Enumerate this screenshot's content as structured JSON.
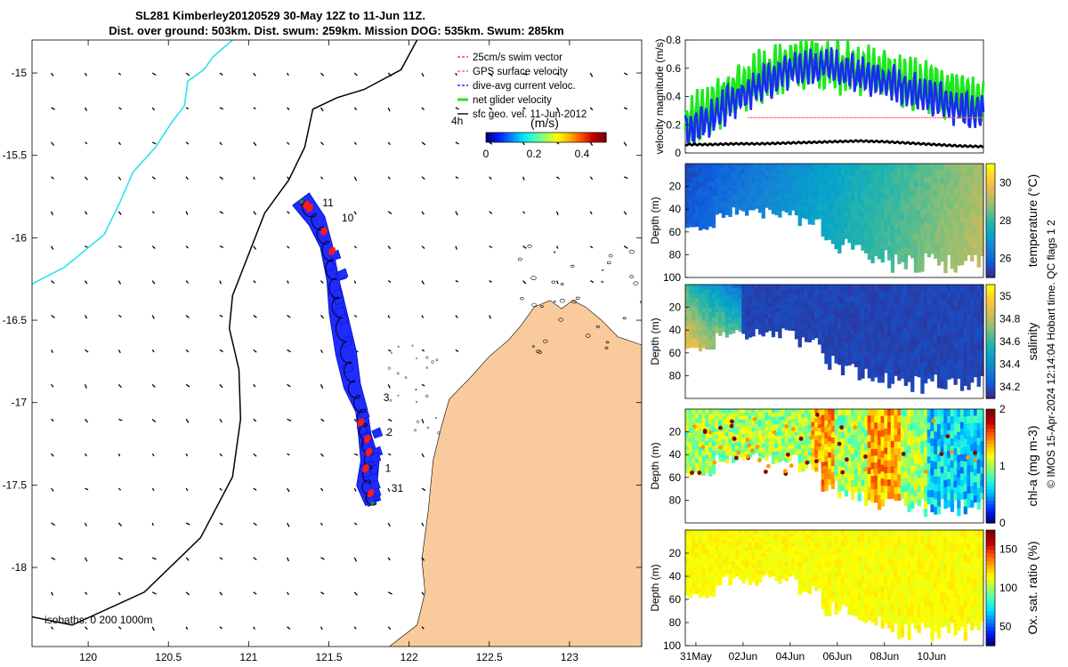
{
  "title": {
    "line1": "SL281 Kimberley20120529 30-May 12Z to 11-Jun 11Z.",
    "line2": "Dist. over ground: 503km. Dist. swum: 259km. Mission DOG: 535km. Swum: 285km"
  },
  "credit": "© IMOS 15-Apr-2024 12:14:04 Hobart time. QC flags 1  2",
  "colors": {
    "land": "#f9cb9c",
    "track_blue": "#1f2bff",
    "track_red": "#ff1a1a",
    "vel_green": "#1ee81e",
    "vel_blue": "#1a2cf0",
    "vel_red": "#ff6060",
    "coast": "#000000",
    "isobath_cyan": "#2de1ee"
  },
  "chart_data": [
    {
      "type": "map",
      "name": "glider track map",
      "xticks": [
        "120",
        "120.5",
        "121",
        "121.5",
        "122",
        "122.5",
        "123"
      ],
      "xtick_values": [
        120,
        120.5,
        121,
        121.5,
        122,
        122.5,
        123
      ],
      "yticks": [
        "-15",
        "-15.5",
        "-16",
        "-16.5",
        "-17",
        "-17.5",
        "-18"
      ],
      "ytick_values": [
        -15,
        -15.5,
        -16,
        -16.5,
        -17,
        -17.5,
        -18
      ],
      "xlim": [
        119.65,
        123.45
      ],
      "ylim": [
        -18.48,
        -14.8
      ],
      "day_labels": [
        {
          "text": "11",
          "lon": 121.46,
          "lat": -15.81
        },
        {
          "text": "10",
          "lon": 121.58,
          "lat": -15.9
        },
        {
          "text": "3",
          "lon": 121.84,
          "lat": -16.99
        },
        {
          "text": "2",
          "lon": 121.86,
          "lat": -17.2
        },
        {
          "text": "1",
          "lon": 121.85,
          "lat": -17.42
        },
        {
          "text": "31",
          "lon": 121.89,
          "lat": -17.54
        }
      ],
      "track": [
        [
          121.77,
          -17.61
        ],
        [
          121.73,
          -17.5
        ],
        [
          121.75,
          -17.35
        ],
        [
          121.72,
          -17.2
        ],
        [
          121.7,
          -17.05
        ],
        [
          121.64,
          -16.9
        ],
        [
          121.6,
          -16.7
        ],
        [
          121.55,
          -16.45
        ],
        [
          121.52,
          -16.25
        ],
        [
          121.48,
          -16.05
        ],
        [
          121.42,
          -15.9
        ],
        [
          121.32,
          -15.77
        ]
      ],
      "legend": [
        "25cm/s swim vector",
        "GPS surface velocity",
        "dive-avg current veloc.",
        "net glider velocity",
        "sfc geo. vel. 11-Jun-2012"
      ],
      "legend_time": "4h",
      "colorbar": {
        "label": "(m/s)",
        "ticks": [
          "0",
          "0.2",
          "0.4"
        ],
        "tick_values": [
          0,
          0.2,
          0.4
        ],
        "range": [
          0,
          0.5
        ]
      },
      "isobaths_label": "isobaths: 0   200  1000m"
    },
    {
      "type": "line",
      "name": "velocity magnitude",
      "ylabel": "velocity magnitude (m/s)",
      "ylim": [
        0,
        0.8
      ],
      "yticks": [
        "0",
        "0.2",
        "0.4",
        "0.6",
        "0.8"
      ],
      "ytick_values": [
        0,
        0.2,
        0.4,
        0.6,
        0.8
      ],
      "xlim_days": [
        0,
        12.5
      ],
      "series": [
        {
          "name": "net glider velocity",
          "color": "#1ee81e",
          "base": [
            0.2,
            0.32,
            0.45,
            0.55,
            0.62,
            0.66,
            0.62,
            0.58,
            0.55,
            0.5,
            0.45,
            0.4,
            0.35
          ],
          "amp": 0.14
        },
        {
          "name": "dive-avg current veloc.",
          "color": "#1a2cf0",
          "base": [
            0.15,
            0.25,
            0.38,
            0.48,
            0.58,
            0.62,
            0.6,
            0.55,
            0.5,
            0.45,
            0.38,
            0.32,
            0.28
          ],
          "amp": 0.1
        },
        {
          "name": "25cm/s swim vector",
          "color": "#ff6060",
          "base": [
            0.25,
            0.25,
            0.25,
            0.25,
            0.25,
            0.25,
            0.25,
            0.25,
            0.25,
            0.25,
            0.25,
            0.25,
            0.25
          ],
          "amp": 0.0,
          "from_day": 2.2
        },
        {
          "name": "sfc geo. vel.",
          "color": "#000000",
          "base": [
            0.06,
            0.06,
            0.065,
            0.065,
            0.07,
            0.075,
            0.08,
            0.085,
            0.08,
            0.07,
            0.06,
            0.05,
            0.045
          ],
          "amp": 0.005
        }
      ]
    },
    {
      "type": "heatmap",
      "name": "temperature",
      "ylabel": "Depth (m)",
      "clabel": "temperature (°C)",
      "yticks": [
        "20",
        "40",
        "60",
        "80",
        "100"
      ],
      "ytick_values": [
        20,
        40,
        60,
        80,
        100
      ],
      "ylim": [
        0,
        100
      ],
      "cticks": [
        "26",
        "28",
        "30"
      ],
      "ctick_values": [
        26,
        28,
        30
      ],
      "crange": [
        25,
        31
      ],
      "cmap": "parula"
    },
    {
      "type": "heatmap",
      "name": "salinity",
      "ylabel": "Depth (m)",
      "clabel": "salinity",
      "yticks": [
        "20",
        "40",
        "60",
        "80"
      ],
      "ytick_values": [
        20,
        40,
        60,
        80
      ],
      "ylim": [
        0,
        100
      ],
      "cticks": [
        "34.2",
        "34.4",
        "34.6",
        "34.8",
        "35"
      ],
      "ctick_values": [
        34.2,
        34.4,
        34.6,
        34.8,
        35
      ],
      "crange": [
        34.1,
        35.1
      ],
      "cmap": "parula"
    },
    {
      "type": "heatmap",
      "name": "chl-a",
      "ylabel": "Depth (m)",
      "clabel": "chl-a (mg m-3)",
      "yticks": [
        "20",
        "40",
        "60",
        "80"
      ],
      "ytick_values": [
        20,
        40,
        60,
        80
      ],
      "ylim": [
        0,
        100
      ],
      "cticks": [
        "0",
        "1",
        "2"
      ],
      "ctick_values": [
        0,
        1,
        2
      ],
      "crange": [
        0,
        2
      ],
      "cmap": "jet"
    },
    {
      "type": "heatmap",
      "name": "oxygen saturation",
      "ylabel": "Depth (m)",
      "clabel": "Ox. sat. ratio (%)",
      "yticks": [
        "20",
        "40",
        "60",
        "80",
        "100"
      ],
      "ytick_values": [
        20,
        40,
        60,
        80,
        100
      ],
      "ylim": [
        0,
        100
      ],
      "cticks": [
        "50",
        "100",
        "150"
      ],
      "ctick_values": [
        50,
        100,
        150
      ],
      "crange": [
        25,
        175
      ],
      "cmap": "jet"
    }
  ],
  "time_axis": {
    "labels": [
      "31May",
      "02Jun",
      "04Jun",
      "06Jun",
      "08Jun",
      "10Jun"
    ],
    "day_offsets": [
      0,
      2,
      4,
      6,
      8,
      10
    ],
    "range_days": [
      -0.45,
      12.2
    ]
  }
}
